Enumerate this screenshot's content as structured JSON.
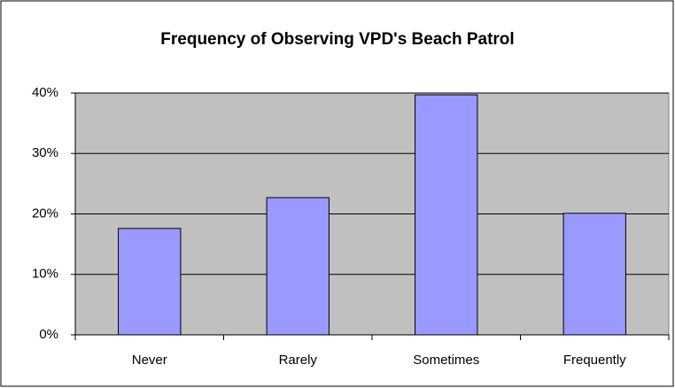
{
  "chart_data": {
    "type": "bar",
    "title": "Frequency of Observing VPD's Beach Patrol",
    "categories": [
      "Never",
      "Rarely",
      "Sometimes",
      "Frequently"
    ],
    "values": [
      17.6,
      22.7,
      39.7,
      20.1
    ],
    "color": "#9999ff",
    "ylim": [
      0,
      40
    ],
    "yticks": [
      {
        "value": 0,
        "label": "0%"
      },
      {
        "value": 10,
        "label": "10%"
      },
      {
        "value": 20,
        "label": "20%"
      },
      {
        "value": 30,
        "label": "30%"
      },
      {
        "value": 40,
        "label": "40%"
      }
    ],
    "grid": true
  }
}
